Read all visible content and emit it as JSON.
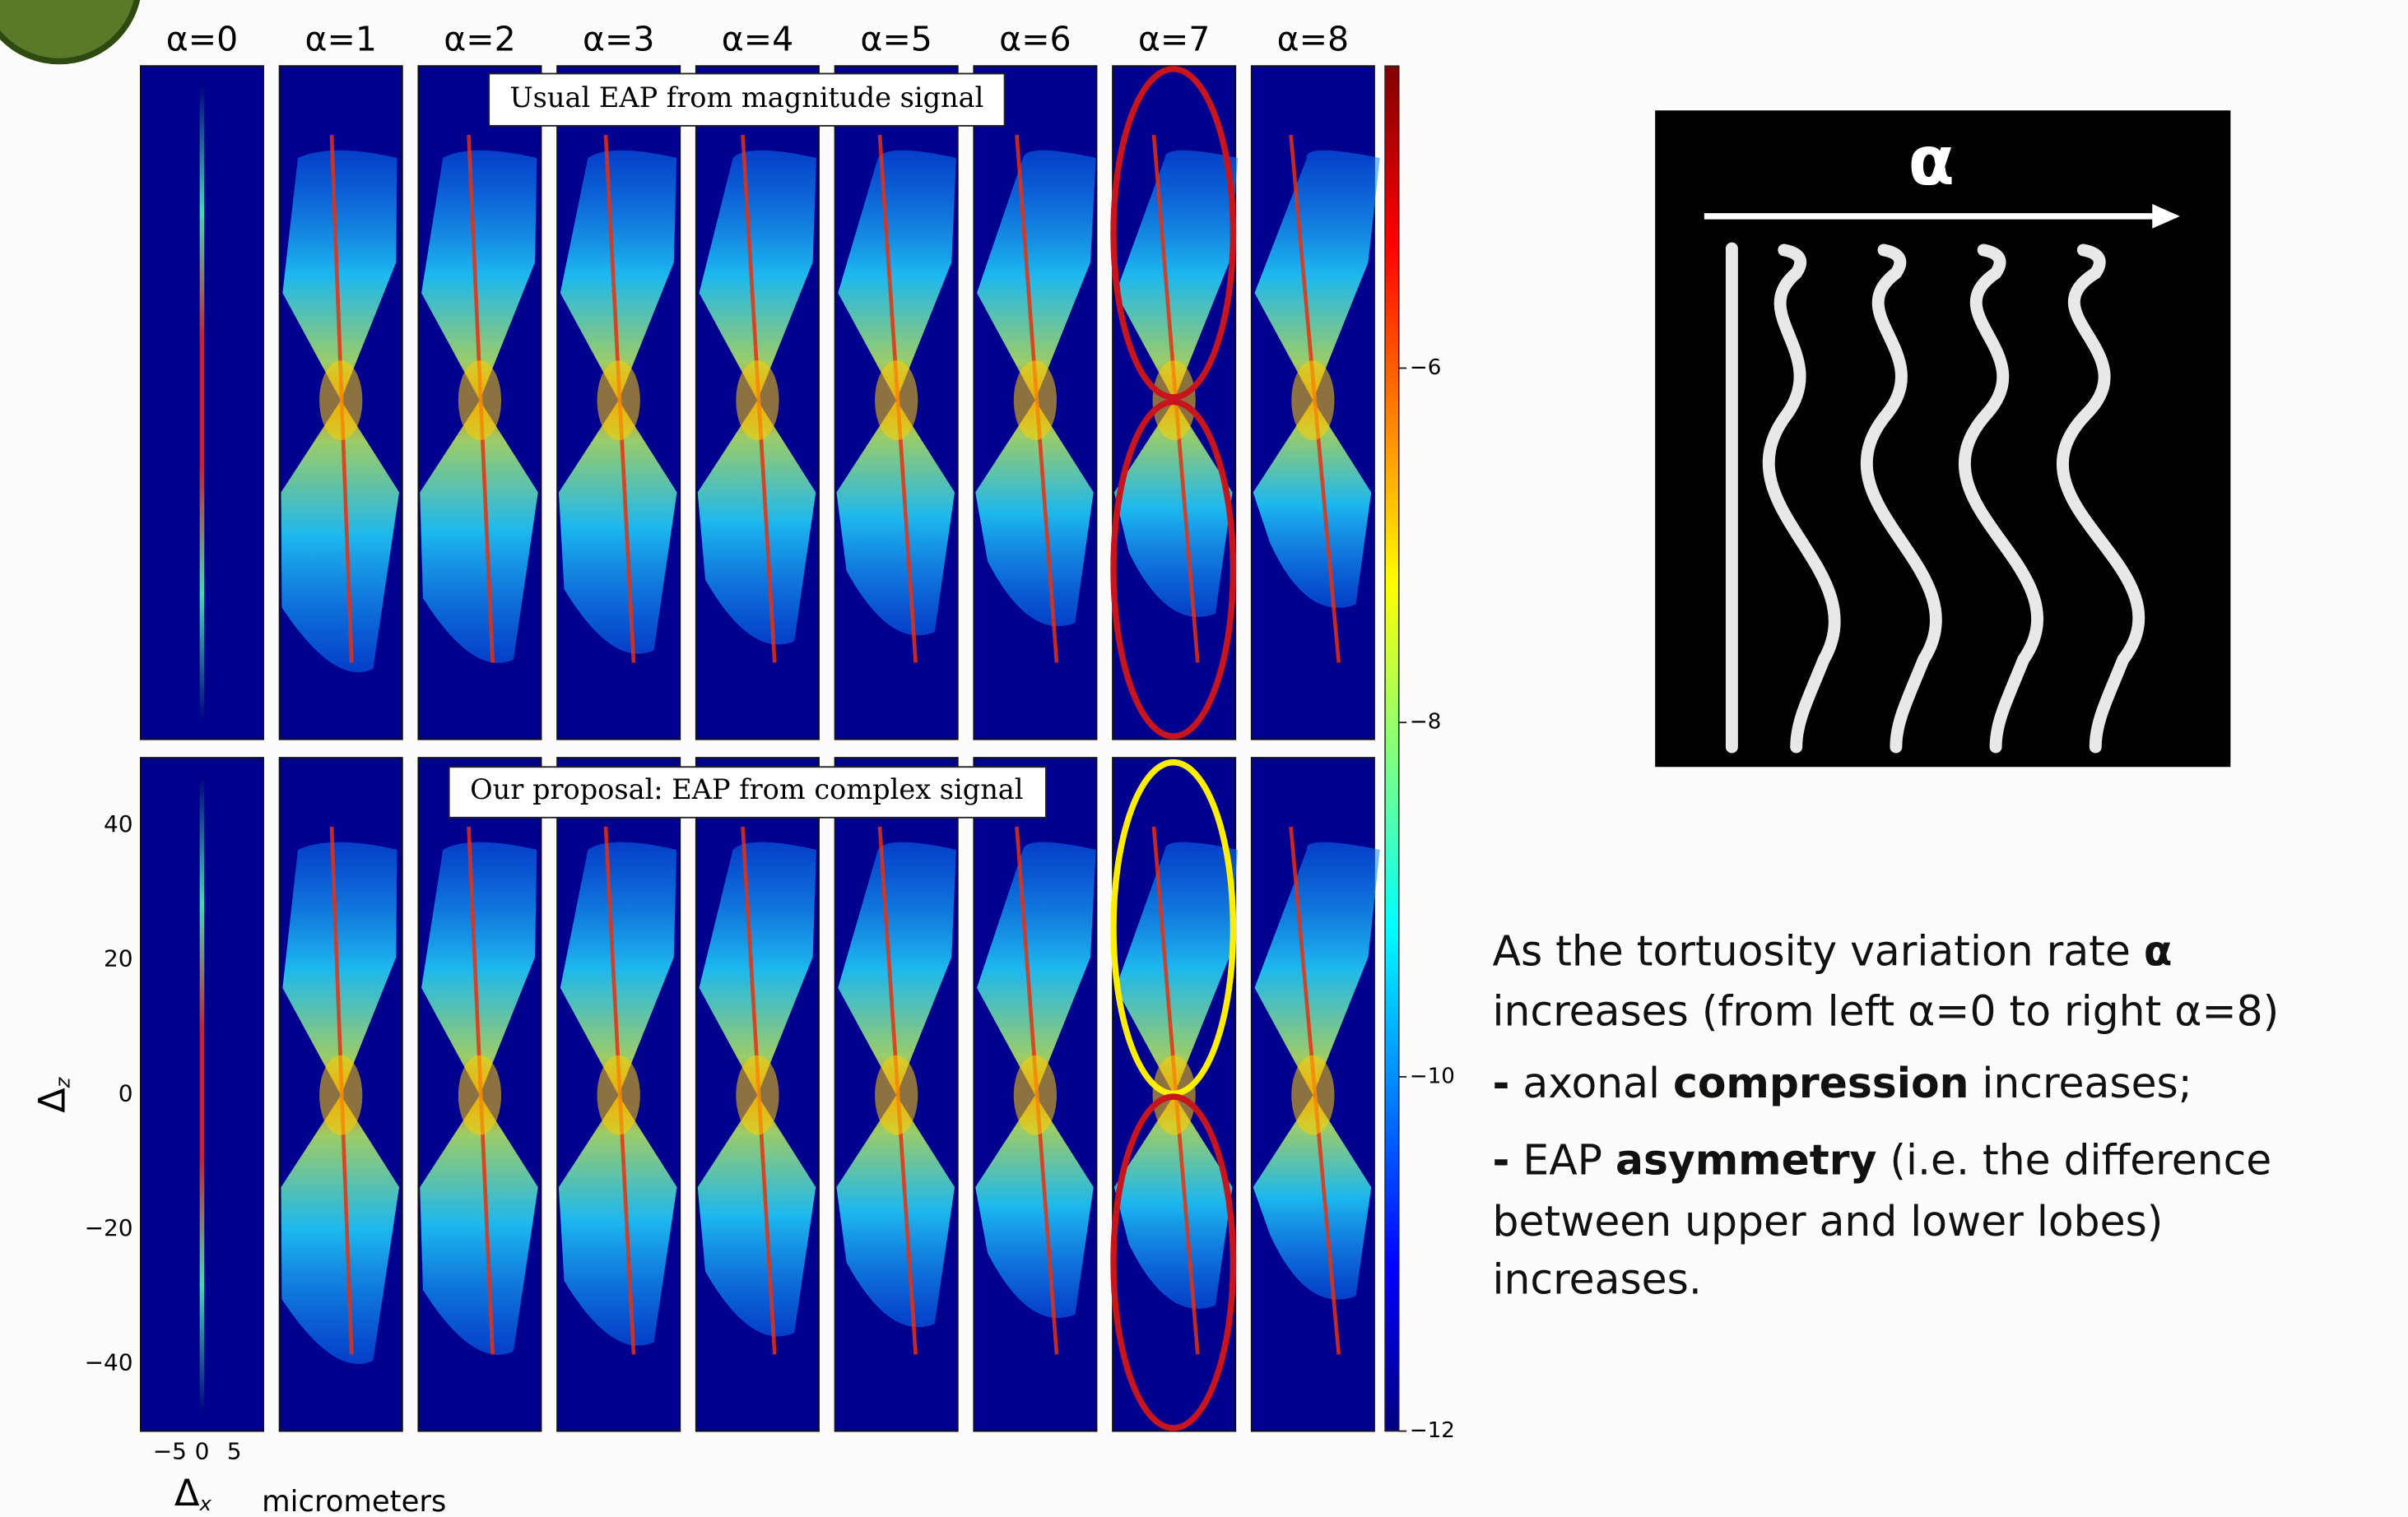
{
  "column_labels": [
    "α=0",
    "α=1",
    "α=2",
    "α=3",
    "α=4",
    "α=5",
    "α=6",
    "α=7",
    "α=8"
  ],
  "panels": {
    "top_caption": "Usual EAP from magnitude signal",
    "bottom_caption": "Our proposal: EAP from complex signal"
  },
  "y_axis": {
    "label": "Δ",
    "label_sub": "z",
    "ticks": [
      "40",
      "20",
      "0",
      "−20",
      "−40"
    ]
  },
  "x_axis": {
    "label": "Δ",
    "label_sub": "x",
    "ticks": [
      "−5",
      "0",
      "5"
    ],
    "unit": "micrometers"
  },
  "colorbar": {
    "ticks": [
      "−6",
      "−8",
      "−10",
      "−12"
    ]
  },
  "diagram": {
    "label": "α"
  },
  "description": {
    "lines": [
      [
        {
          "text": "As the tortuosity variation rate "
        },
        {
          "text": "α",
          "bold": true
        }
      ],
      [
        {
          "text": "increases (from left α=0 to right α=8)"
        }
      ],
      [
        {
          "text": "-",
          "bold": true
        },
        {
          "text": " axonal "
        },
        {
          "text": "compression",
          "bold": true
        },
        {
          "text": " increases;"
        }
      ],
      [
        {
          "text": "-",
          "bold": true
        },
        {
          "text": " EAP "
        },
        {
          "text": "asymmetry",
          "bold": true
        },
        {
          "text": " (i.e. the difference"
        }
      ],
      [
        {
          "text": "between upper and lower lobes)"
        }
      ],
      [
        {
          "text": "increases."
        }
      ]
    ]
  }
}
